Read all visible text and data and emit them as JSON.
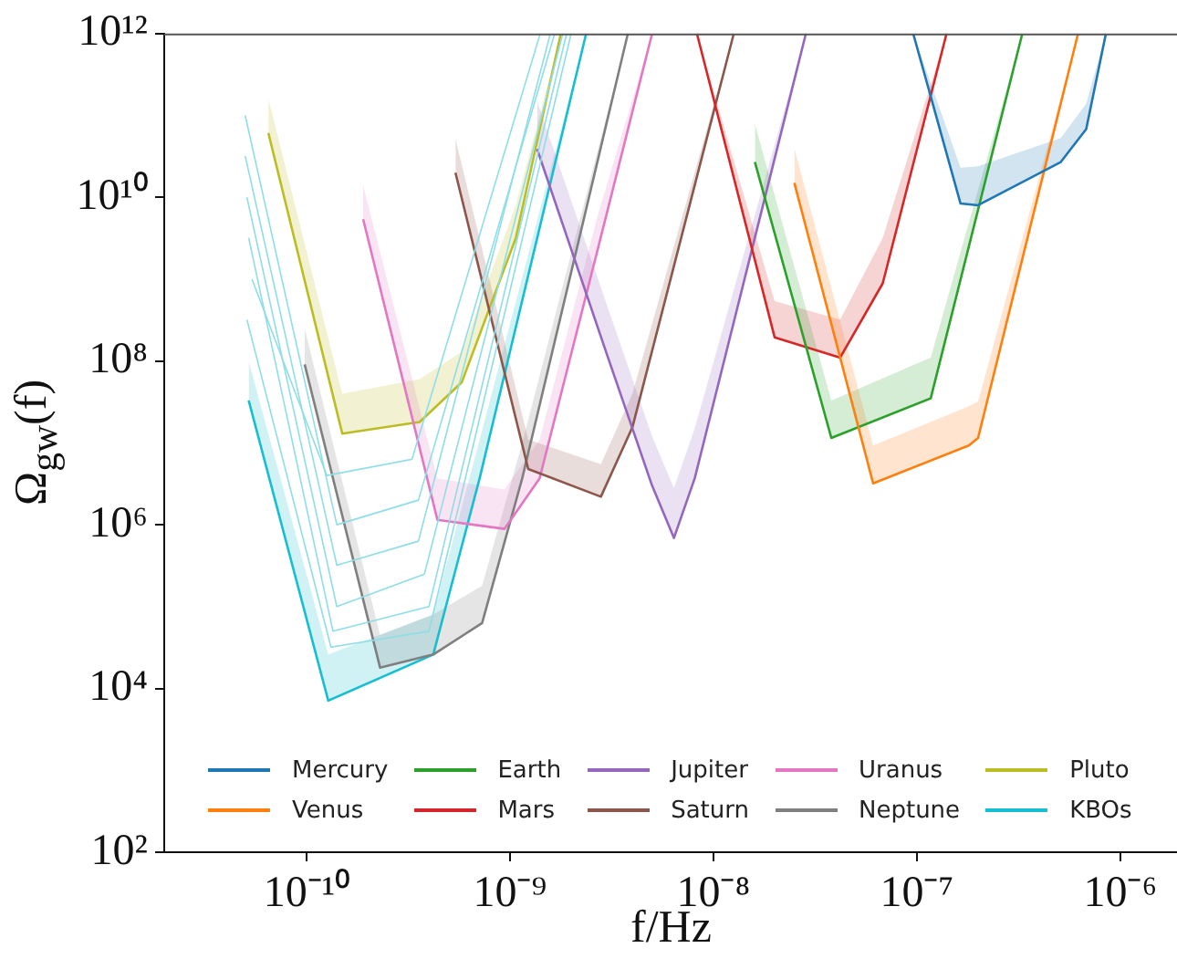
{
  "chart_data": {
    "type": "line",
    "xlabel": "f/Hz",
    "ylabel": "Ω$_{gw}$(f)",
    "log": "xy",
    "grid": false,
    "legend": "bottom",
    "marker": "none",
    "line_style": "solid",
    "xlim": [
      2e-11,
      1.9e-06
    ],
    "ylim": [
      100,
      1000000000000.0
    ],
    "xticks": [
      {
        "value": 1e-10,
        "label": "10⁻¹⁰"
      },
      {
        "value": 1e-09,
        "label": "10⁻⁹"
      },
      {
        "value": 1e-08,
        "label": "10⁻⁸"
      },
      {
        "value": 1e-07,
        "label": "10⁻⁷"
      },
      {
        "value": 1e-06,
        "label": "10⁻⁶"
      }
    ],
    "yticks": [
      {
        "value": 100,
        "label": "10²"
      },
      {
        "value": 10000,
        "label": "10⁴"
      },
      {
        "value": 1000000.0,
        "label": "10⁶"
      },
      {
        "value": 100000000.0,
        "label": "10⁸"
      },
      {
        "value": 10000000000.0,
        "label": "10¹⁰"
      },
      {
        "value": 1000000000000.0,
        "label": "10¹²"
      }
    ],
    "series": [
      {
        "name": "Mercury",
        "color": "#1f77b4",
        "x": [
          9.6e-08,
          1.64e-07,
          2e-07,
          5.1e-07,
          6.8e-07,
          8.5e-07
        ],
        "values": [
          1000000000000.0,
          8400000000.0,
          8000000000.0,
          27000000000.0,
          68000000000.0,
          1000000000000.0
        ],
        "lower": [
          1000000000000.0,
          8400000000.0,
          8000000000.0,
          27000000000.0,
          68000000000.0,
          1000000000000.0
        ],
        "upper": [
          1000000000000.0,
          23000000000.0,
          24000000000.0,
          53000000000.0,
          140000000000.0,
          1000000000000.0
        ]
      },
      {
        "name": "Venus",
        "color": "#ff7f0e",
        "x": [
          2.5e-08,
          6.1e-08,
          1.8e-07,
          2e-07,
          6.2e-07
        ],
        "values": [
          15000000000.0,
          3200000.0,
          9300000.0,
          11500000.0,
          1000000000000.0
        ],
        "lower": [
          15000000000.0,
          3200000.0,
          9300000.0,
          11500000.0,
          1000000000000.0
        ],
        "upper": [
          40000000000.0,
          9300000.0,
          28000000.0,
          32000000.0,
          1000000000000.0
        ]
      },
      {
        "name": "Earth",
        "color": "#2ca02c",
        "x": [
          1.6e-08,
          3.8e-08,
          1.17e-07,
          3.3e-07
        ],
        "values": [
          27000000000.0,
          11500000.0,
          35000000.0,
          1000000000000.0
        ],
        "lower": [
          27000000000.0,
          11500000.0,
          35000000.0,
          1000000000000.0
        ],
        "upper": [
          79000000000.0,
          33000000.0,
          110000000.0,
          1000000000000.0
        ]
      },
      {
        "name": "Mars",
        "color": "#d62728",
        "x": [
          8.3e-09,
          2e-08,
          4.2e-08,
          6.8e-08,
          1.4e-07
        ],
        "values": [
          1000000000000.0,
          195000000.0,
          110000000.0,
          890000000.0,
          1000000000000.0
        ],
        "lower": [
          1000000000000.0,
          195000000.0,
          110000000.0,
          890000000.0,
          1000000000000.0
        ],
        "upper": [
          1000000000000.0,
          540000000.0,
          320000000.0,
          3200000000.0,
          1000000000000.0
        ]
      },
      {
        "name": "Jupiter",
        "color": "#9467bd",
        "x": [
          1.36e-09,
          3e-09,
          5e-09,
          6.4e-09,
          8.1e-09,
          2.85e-08
        ],
        "values": [
          39000000000.0,
          120000000.0,
          3000000.0,
          690000.0,
          3700000.0,
          1000000000000.0
        ],
        "lower": [
          39000000000.0,
          120000000.0,
          3000000.0,
          690000.0,
          3700000.0,
          1000000000000.0
        ],
        "upper": [
          150000000000.0,
          480000000.0,
          12000000.0,
          2800000.0,
          15000000.0,
          1000000000000.0
        ]
      },
      {
        "name": "Saturn",
        "color": "#8c564b",
        "x": [
          5.4e-10,
          1.23e-09,
          2.8e-09,
          4e-09,
          1.26e-08
        ],
        "values": [
          20000000000.0,
          4800000.0,
          2200000.0,
          15500000.0,
          1000000000000.0
        ],
        "lower": [
          20000000000.0,
          4800000.0,
          2200000.0,
          15500000.0,
          1000000000000.0
        ],
        "upper": [
          52000000000.0,
          11000000.0,
          5500000.0,
          40000000.0,
          1000000000000.0
        ]
      },
      {
        "name": "Uranus",
        "color": "#e377c2",
        "x": [
          1.9e-10,
          4.4e-10,
          9.4e-10,
          1.4e-09,
          2.7e-09,
          5e-09
        ],
        "values": [
          5400000000.0,
          1150000.0,
          890000.0,
          3700000.0,
          2300000000.0,
          1000000000000.0
        ],
        "lower": [
          5400000000.0,
          1150000.0,
          890000.0,
          3700000.0,
          2300000000.0,
          1000000000000.0
        ],
        "upper": [
          14000000000.0,
          3700000.0,
          2700000.0,
          11000000.0,
          6000000000.0,
          1000000000000.0
        ]
      },
      {
        "name": "Neptune",
        "color": "#7f7f7f",
        "x": [
          9.8e-11,
          2.3e-10,
          4.2e-10,
          7.3e-10,
          1.15e-09,
          3.8e-09
        ],
        "values": [
          91000000.0,
          18000.0,
          26000.0,
          63000.0,
          3700000.0,
          1000000000000.0
        ],
        "lower": [
          91000000.0,
          18000.0,
          26000.0,
          63000.0,
          3700000.0,
          1000000000000.0
        ],
        "upper": [
          250000000.0,
          45000.0,
          80000.0,
          180000.0,
          10000000.0,
          1000000000000.0
        ]
      },
      {
        "name": "Pluto",
        "color": "#bcbd22",
        "x": [
          6.5e-11,
          1.5e-10,
          3.6e-10,
          5.8e-10,
          1.07e-09,
          1.78e-09
        ],
        "values": [
          61000000000.0,
          13000000.0,
          18000000.0,
          55000000.0,
          3200000000.0,
          1000000000000.0
        ],
        "lower": [
          61000000000.0,
          13000000.0,
          18000000.0,
          55000000.0,
          3200000000.0,
          1000000000000.0
        ],
        "upper": [
          160000000000.0,
          40000000.0,
          60000000.0,
          130000000.0,
          8000000000.0,
          1000000000000.0
        ]
      },
      {
        "name": "KBOs",
        "color": "#17becf",
        "x": [
          5.2e-11,
          1.28e-10,
          4.2e-10,
          7.1e-10,
          2.37e-09
        ],
        "values": [
          33000000.0,
          7100.0,
          26000.0,
          3700000.0,
          1000000000000.0
        ],
        "lower": [
          33000000.0,
          7100.0,
          26000.0,
          3700000.0,
          1000000000000.0
        ],
        "upper": [
          100000000.0,
          26000.0,
          80000.0,
          11000000.0,
          1000000000000.0
        ]
      },
      {
        "color": "#8fdde6",
        "x": [
          5e-11,
          1.41e-10,
          3.55e-10,
          1.66e-09
        ],
        "values": [
          100000000000.0,
          1000000.0,
          2000000.0,
          1000000000000.0
        ]
      },
      {
        "color": "#8fdde6",
        "x": [
          5e-11,
          1.41e-10,
          3.55e-10,
          1.58e-09
        ],
        "values": [
          32000000000.0,
          320000.0,
          630000.0,
          1000000000000.0
        ]
      },
      {
        "color": "#8fdde6",
        "x": [
          5.1e-11,
          1.41e-10,
          3.8e-10,
          1.82e-09
        ],
        "values": [
          10000000000.0,
          100000.0,
          250000.0,
          1000000000000.0
        ]
      },
      {
        "color": "#8fdde6",
        "x": [
          5.2e-11,
          1.35e-10,
          4e-10,
          1.9e-09
        ],
        "values": [
          3200000000.0,
          50000.0,
          100000.0,
          1000000000000.0
        ]
      },
      {
        "color": "#8fdde6",
        "x": [
          5.4e-11,
          1.26e-10,
          3.3e-10,
          1.41e-09
        ],
        "values": [
          1000000000.0,
          4000000.0,
          6300000.0,
          1000000000000.0
        ]
      },
      {
        "color": "#8fdde6",
        "x": [
          5.1e-11,
          1.32e-10,
          4e-10,
          2e-09
        ],
        "values": [
          320000000.0,
          32000.0,
          50000.0,
          1000000000000.0
        ]
      }
    ]
  }
}
